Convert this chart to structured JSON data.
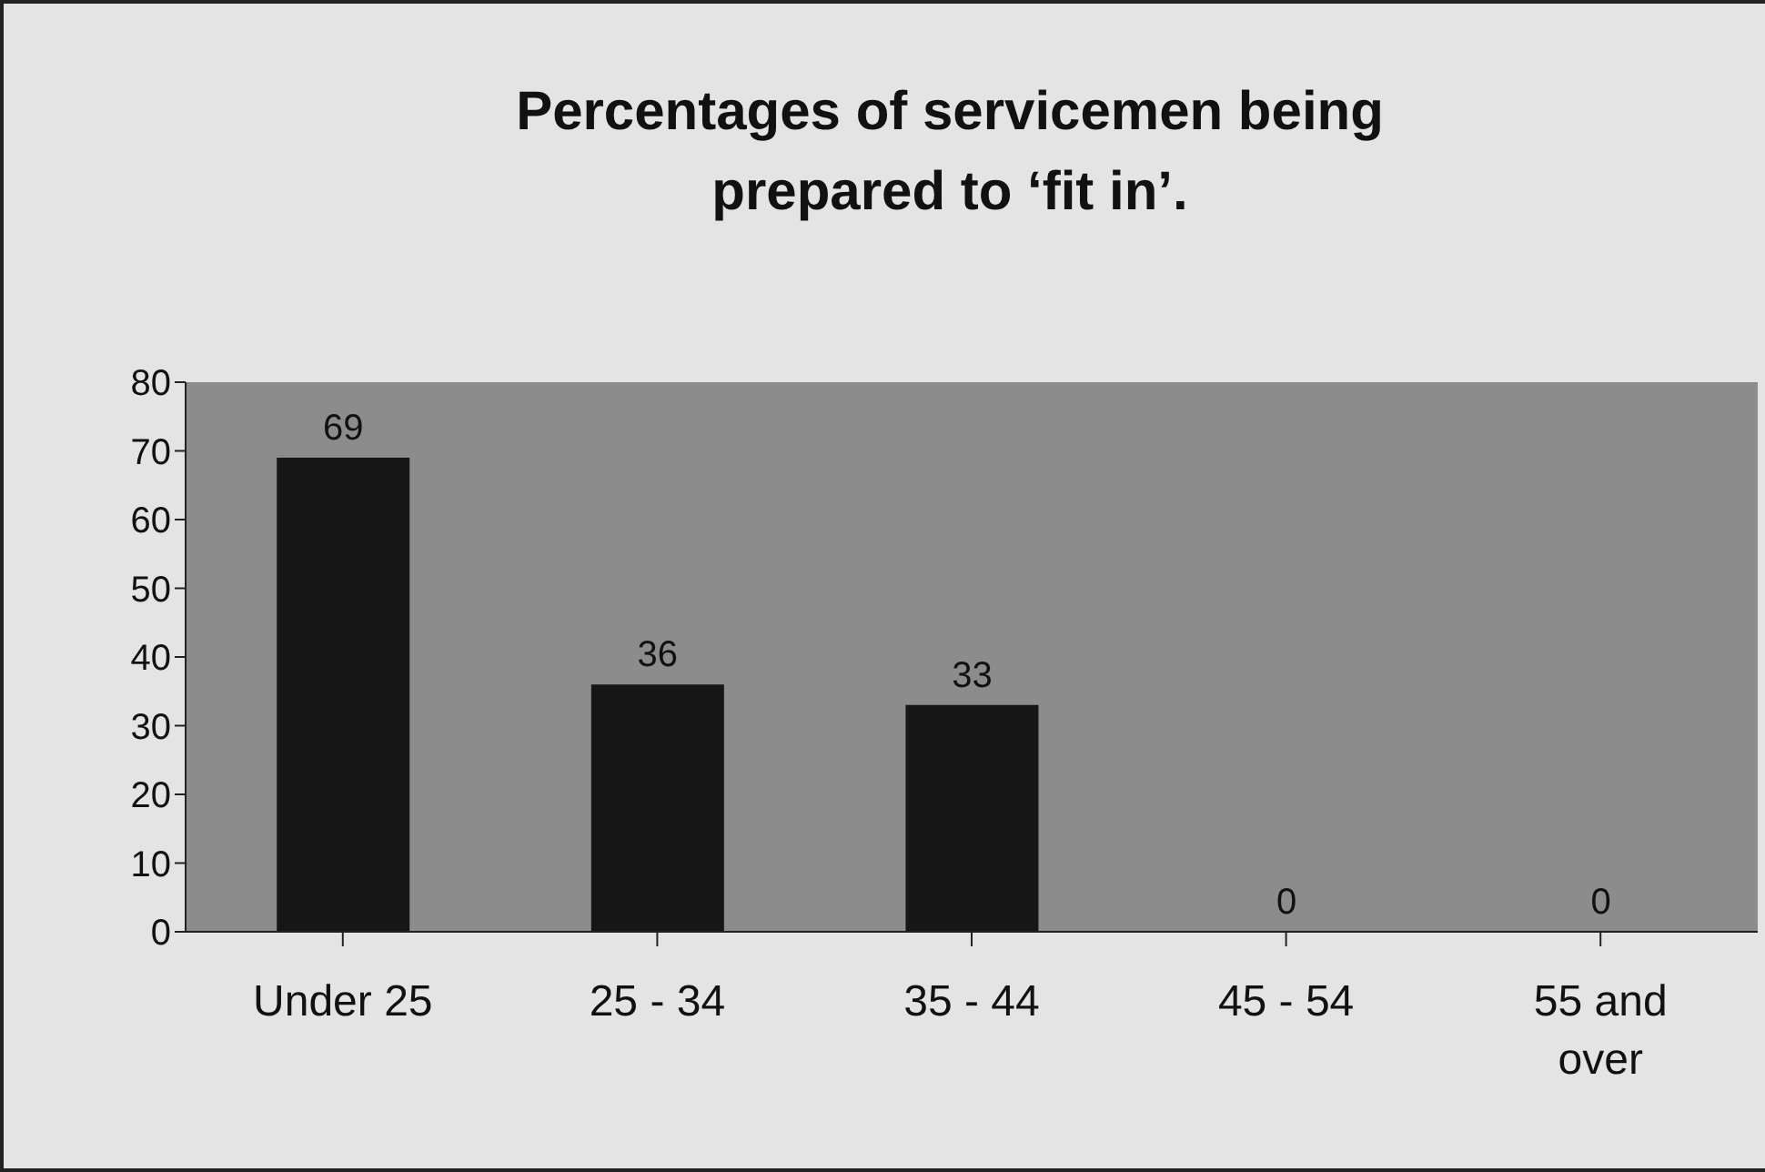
{
  "chart_data": {
    "type": "bar",
    "title": "Percentages of servicemen being prepared to ‘fit in’.",
    "categories": [
      "Under 25",
      "25 - 34",
      "35 - 44",
      "45 - 54",
      "55 and over"
    ],
    "values": [
      69,
      36,
      33,
      0,
      0
    ],
    "color": "#161616",
    "ylim": [
      0,
      80
    ],
    "yticks": [
      0,
      10,
      20,
      30,
      40,
      50,
      60,
      70,
      80
    ],
    "grid": false,
    "data_labels": true
  }
}
